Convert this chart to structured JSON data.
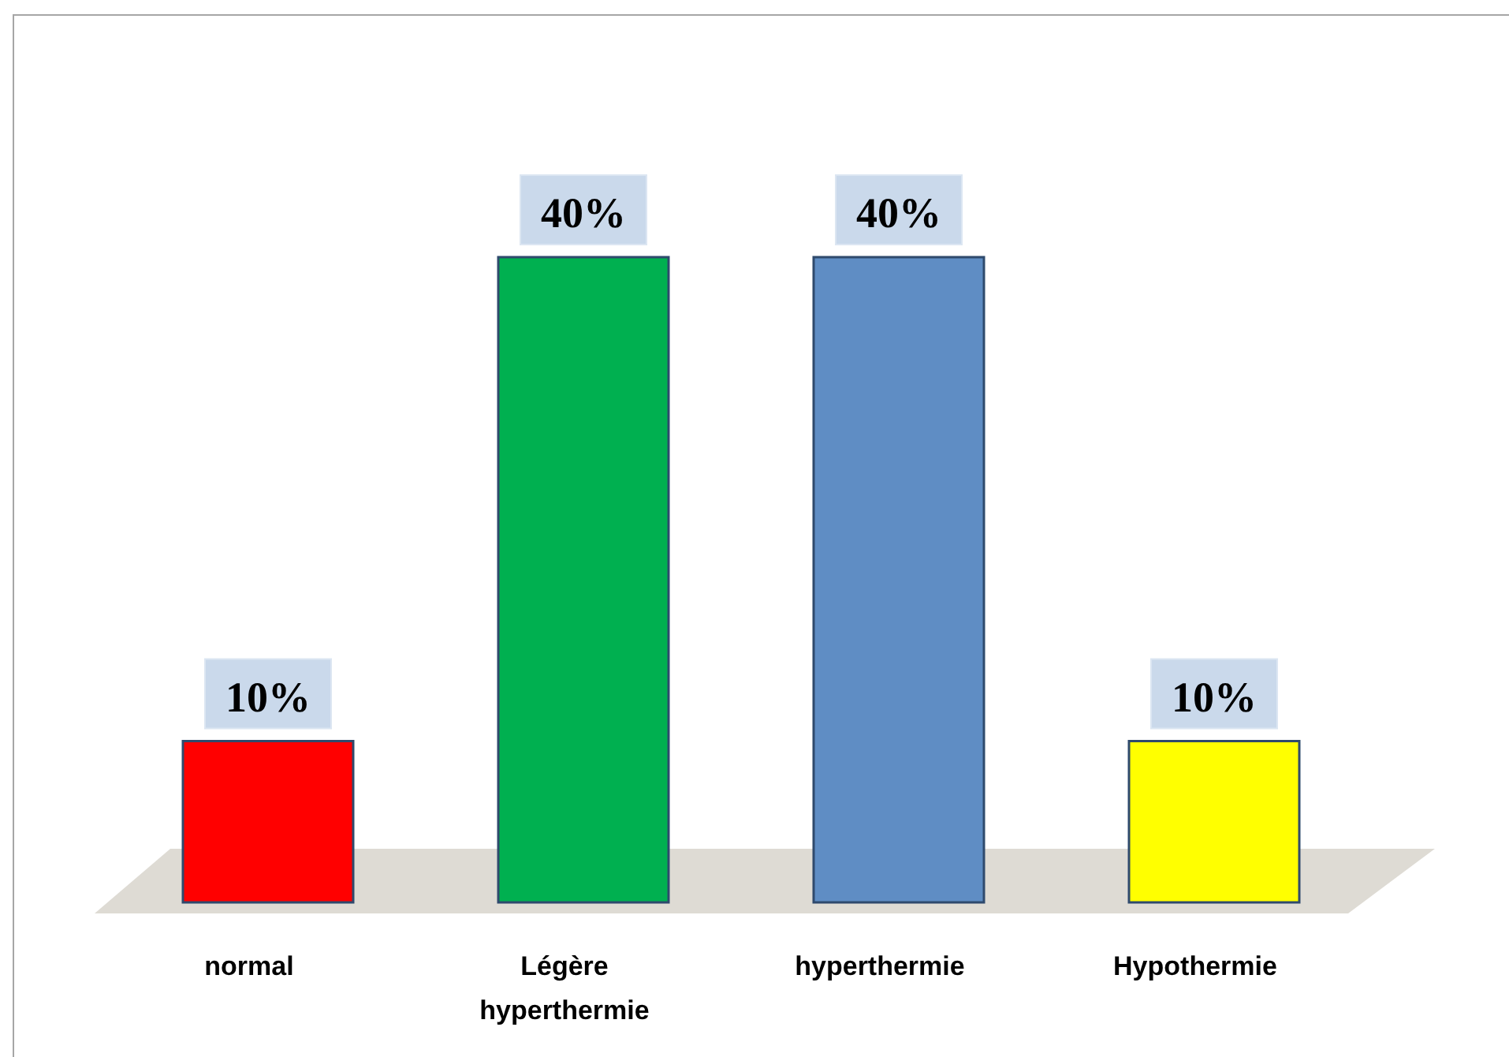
{
  "chart_data": {
    "type": "bar",
    "categories": [
      "normal",
      "Légère hyperthermie",
      "hyperthermie",
      "Hypothermie"
    ],
    "values": [
      10,
      40,
      40,
      10
    ],
    "colors": [
      "#ff0000",
      "#00b050",
      "#5f8dc4",
      "#ffff00"
    ],
    "value_labels": [
      "10%",
      "40%",
      "40%",
      "10%"
    ]
  }
}
